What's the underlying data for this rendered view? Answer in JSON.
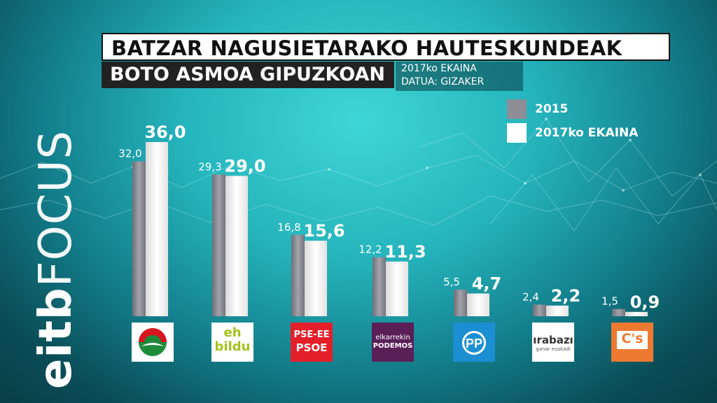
{
  "header": {
    "title": "BATZAR NAGUSIETARAKO HAUTESKUNDEAK",
    "subtitle": "BOTO ASMOA GIPUZKOAN",
    "meta_line1": "2017ko EKAINA",
    "meta_line2": "DATUA: GIZAKER"
  },
  "brand": {
    "part1": "eitb",
    "part2": "FOCUS"
  },
  "legend": {
    "items": [
      {
        "label": "2015",
        "color": "#8d8d96"
      },
      {
        "label": "2017ko EKAINA",
        "color": "#ffffff"
      }
    ]
  },
  "logos": {
    "pnv": {
      "label": "",
      "bg": "#ffffff"
    },
    "ehbildu": {
      "line1": "eh",
      "line2": "bildu",
      "color": "#a3c31b"
    },
    "psoe": {
      "line1": "PSE-EE",
      "line2": "PSOE",
      "bg": "#e3202a"
    },
    "podemos": {
      "line1": "elkarrekin",
      "line2": "PODEMOS",
      "bg": "#5b1f58"
    },
    "pp": {
      "label": "PP",
      "bg": "#1b8fd2"
    },
    "irabazi": {
      "line1": "ırabazı",
      "line2": "ganar euskadi"
    },
    "cs": {
      "label": "C's",
      "bg": "#ee7a32"
    }
  },
  "chart_data": {
    "type": "bar",
    "title": "BOTO ASMOA GIPUZKOAN",
    "categories": [
      "EAJ-PNV",
      "EH Bildu",
      "PSE-EE PSOE",
      "Elkarrekin Podemos",
      "PP",
      "Irabazi",
      "Cs"
    ],
    "series": [
      {
        "name": "2015",
        "values": [
          32.0,
          29.3,
          16.8,
          12.2,
          5.5,
          2.4,
          1.5
        ],
        "labels": [
          "32,0",
          "29,3",
          "16,8",
          "12,2",
          "5,5",
          "2,4",
          "1,5"
        ]
      },
      {
        "name": "2017ko EKAINA",
        "values": [
          36.0,
          29.0,
          15.6,
          11.3,
          4.7,
          2.2,
          0.9
        ],
        "labels": [
          "36,0",
          "29,0",
          "15,6",
          "11,3",
          "4,7",
          "2,2",
          "0,9"
        ]
      }
    ],
    "ylim": [
      0,
      36
    ],
    "grid": false,
    "legend_position": "top-right"
  }
}
